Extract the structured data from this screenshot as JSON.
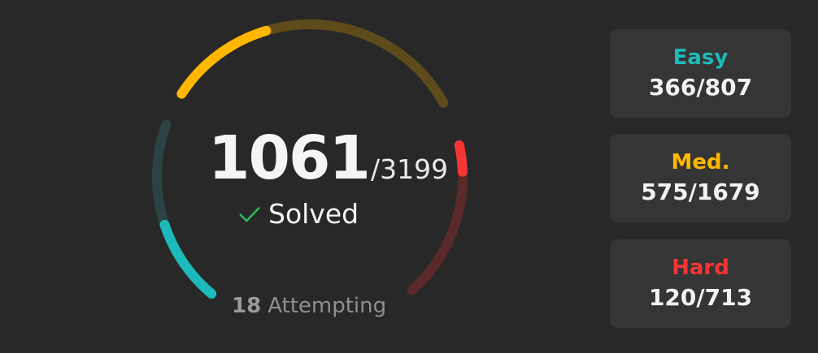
{
  "summary": {
    "solved": "1061",
    "total": "/3199",
    "solved_label": "Solved",
    "attempting_count": "18",
    "attempting_label": "Attempting"
  },
  "progress": {
    "easy": {
      "solved": 366,
      "total": 807
    },
    "medium": {
      "solved": 575,
      "total": 1679
    },
    "hard": {
      "solved": 120,
      "total": 713
    }
  },
  "cards": {
    "easy": {
      "label": "Easy",
      "value": "366/807"
    },
    "medium": {
      "label": "Med.",
      "value": "575/1679"
    },
    "hard": {
      "label": "Hard",
      "value": "120/713"
    }
  },
  "colors": {
    "easy": "#1cbaba",
    "easy_track": "#2a4444",
    "medium": "#ffb700",
    "medium_track": "#5e4b1c",
    "hard": "#f63636",
    "hard_track": "#5a2a2a",
    "check": "#2cbb5d"
  },
  "icons": {
    "check": "check-icon"
  }
}
